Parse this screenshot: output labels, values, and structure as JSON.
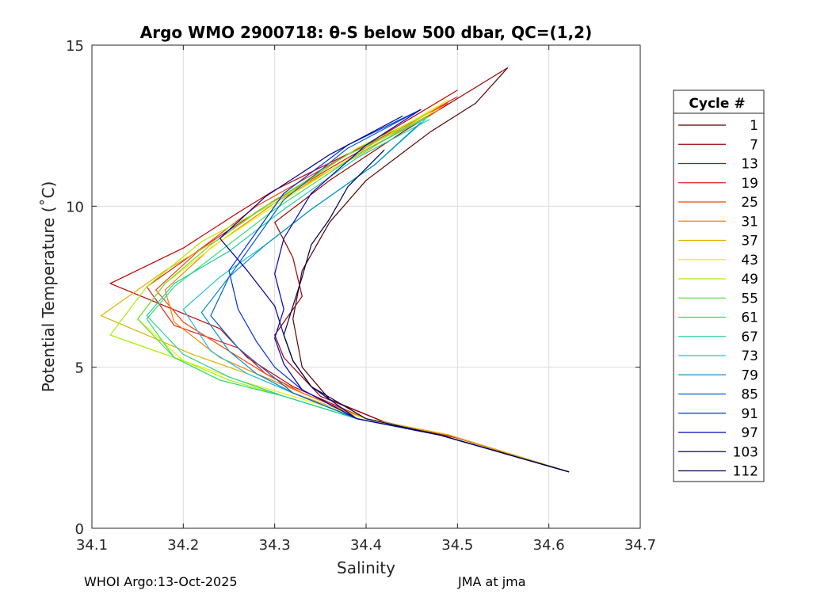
{
  "chart_data": {
    "type": "line",
    "title": "Argo WMO 2900718: θ-S below 500 dbar,  QC=(1,2)",
    "xlabel": "Salinity",
    "ylabel": "Potential Temperature (˚C)",
    "xlim": [
      34.1,
      34.7
    ],
    "ylim": [
      0,
      15
    ],
    "xticks": [
      "34.1",
      "34.2",
      "34.3",
      "34.4",
      "34.5",
      "34.6",
      "34.7"
    ],
    "yticks": [
      "0",
      "5",
      "10",
      "15"
    ],
    "grid": true,
    "legend_title": "Cycle #",
    "legend_position": "right-outside",
    "series": [
      {
        "name": "1",
        "color": "#5a0000",
        "salinity": [
          34.622,
          34.5,
          34.42,
          34.36,
          34.33,
          34.32,
          34.33,
          34.36,
          34.4,
          34.47,
          34.52,
          34.555
        ],
        "theta": [
          1.75,
          2.8,
          3.3,
          4.0,
          5.0,
          6.5,
          8.0,
          9.5,
          10.8,
          12.3,
          13.2,
          14.3
        ]
      },
      {
        "name": "7",
        "color": "#a00000",
        "salinity": [
          34.622,
          34.5,
          34.42,
          34.35,
          34.31,
          34.3,
          34.33,
          34.32,
          34.3,
          34.36,
          34.44,
          34.555
        ],
        "theta": [
          1.75,
          2.8,
          3.3,
          4.1,
          5.3,
          6.0,
          7.2,
          8.4,
          9.5,
          10.8,
          12.3,
          14.3
        ]
      },
      {
        "name": "13",
        "color": "#c40000",
        "salinity": [
          34.622,
          34.5,
          34.4,
          34.32,
          34.27,
          34.24,
          34.12,
          34.2,
          34.26,
          34.3,
          34.4,
          34.5
        ],
        "theta": [
          1.75,
          2.8,
          3.4,
          4.4,
          5.3,
          6.2,
          7.6,
          8.7,
          9.8,
          10.5,
          11.9,
          13.6
        ]
      },
      {
        "name": "19",
        "color": "#e02020",
        "salinity": [
          34.622,
          34.49,
          34.4,
          34.33,
          34.29,
          34.26,
          34.19,
          34.16,
          34.22,
          34.29,
          34.38,
          34.5
        ],
        "theta": [
          1.75,
          2.9,
          3.4,
          4.2,
          4.8,
          5.6,
          6.3,
          7.5,
          8.7,
          10.0,
          11.5,
          13.4
        ]
      },
      {
        "name": "25",
        "color": "#ff4000",
        "salinity": [
          34.622,
          34.49,
          34.4,
          34.33,
          34.29,
          34.25,
          34.2,
          34.17,
          34.22,
          34.28,
          34.38,
          34.49
        ],
        "theta": [
          1.75,
          2.9,
          3.4,
          4.2,
          4.8,
          5.5,
          6.4,
          7.4,
          8.7,
          10.0,
          11.6,
          13.2
        ]
      },
      {
        "name": "31",
        "color": "#ff8000",
        "salinity": [
          34.622,
          34.49,
          34.4,
          34.33,
          34.28,
          34.24,
          34.19,
          34.18,
          34.23,
          34.3,
          34.39,
          34.48
        ],
        "theta": [
          1.75,
          2.9,
          3.4,
          4.2,
          4.8,
          5.3,
          6.4,
          7.4,
          8.7,
          10.1,
          11.6,
          13.0
        ]
      },
      {
        "name": "37",
        "color": "#e0b000",
        "salinity": [
          34.622,
          34.49,
          34.4,
          34.32,
          34.27,
          34.21,
          34.11,
          34.18,
          34.24,
          34.3,
          34.4,
          34.48
        ],
        "theta": [
          1.75,
          2.9,
          3.4,
          4.2,
          4.8,
          5.4,
          6.6,
          8.0,
          9.0,
          10.2,
          11.7,
          13.1
        ]
      },
      {
        "name": "43",
        "color": "#f0f000",
        "salinity": [
          34.622,
          34.48,
          34.4,
          34.32,
          34.26,
          34.2,
          34.15,
          34.18,
          34.24,
          34.31,
          34.4,
          34.49
        ],
        "theta": [
          1.75,
          2.9,
          3.4,
          4.1,
          4.6,
          5.2,
          6.5,
          7.6,
          8.9,
          10.2,
          11.8,
          13.3
        ]
      },
      {
        "name": "49",
        "color": "#a8f000",
        "salinity": [
          34.622,
          34.48,
          34.39,
          34.31,
          34.25,
          34.2,
          34.12,
          34.16,
          34.22,
          34.3,
          34.39,
          34.47
        ],
        "theta": [
          1.75,
          2.9,
          3.4,
          4.1,
          4.6,
          5.2,
          6.0,
          7.5,
          8.9,
          10.1,
          11.8,
          12.9
        ]
      },
      {
        "name": "55",
        "color": "#60e040",
        "salinity": [
          34.622,
          34.48,
          34.39,
          34.31,
          34.24,
          34.19,
          34.15,
          34.18,
          34.23,
          34.29,
          34.38,
          34.47
        ],
        "theta": [
          1.75,
          2.9,
          3.4,
          4.1,
          4.6,
          5.3,
          6.5,
          7.6,
          8.8,
          10.0,
          11.6,
          12.8
        ]
      },
      {
        "name": "61",
        "color": "#30e070",
        "salinity": [
          34.622,
          34.48,
          34.39,
          34.31,
          34.24,
          34.19,
          34.16,
          34.19,
          34.24,
          34.3,
          34.39,
          34.47
        ],
        "theta": [
          1.75,
          2.9,
          3.4,
          4.1,
          4.6,
          5.3,
          6.5,
          7.5,
          8.6,
          9.9,
          11.6,
          12.8
        ]
      },
      {
        "name": "67",
        "color": "#20d0a0",
        "salinity": [
          34.622,
          34.48,
          34.39,
          34.31,
          34.25,
          34.2,
          34.16,
          34.19,
          34.25,
          34.31,
          34.39,
          34.47
        ],
        "theta": [
          1.75,
          2.9,
          3.4,
          4.1,
          4.7,
          5.4,
          6.6,
          7.6,
          8.6,
          9.9,
          11.5,
          12.7
        ]
      },
      {
        "name": "73",
        "color": "#20c0e0",
        "salinity": [
          34.622,
          34.48,
          34.39,
          34.32,
          34.27,
          34.23,
          34.2,
          34.24,
          34.29,
          34.34,
          34.41,
          34.465
        ],
        "theta": [
          1.75,
          2.9,
          3.4,
          4.2,
          4.8,
          5.5,
          6.8,
          7.8,
          8.8,
          9.9,
          11.3,
          12.7
        ]
      },
      {
        "name": "79",
        "color": "#0090d0",
        "salinity": [
          34.622,
          34.48,
          34.39,
          34.32,
          34.28,
          34.25,
          34.22,
          34.25,
          34.29,
          34.34,
          34.41,
          34.46
        ],
        "theta": [
          1.75,
          2.9,
          3.4,
          4.2,
          4.8,
          5.5,
          6.7,
          7.8,
          8.8,
          9.9,
          11.3,
          12.6
        ]
      },
      {
        "name": "85",
        "color": "#0060d0",
        "salinity": [
          34.622,
          34.48,
          34.39,
          34.32,
          34.29,
          34.26,
          34.23,
          34.25,
          34.28,
          34.31,
          34.38,
          34.46
        ],
        "theta": [
          1.75,
          2.9,
          3.4,
          4.2,
          4.9,
          5.6,
          6.6,
          7.8,
          9.0,
          10.2,
          11.8,
          13.0
        ]
      },
      {
        "name": "91",
        "color": "#0030e0",
        "salinity": [
          34.622,
          34.48,
          34.39,
          34.33,
          34.3,
          34.28,
          34.26,
          34.25,
          34.28,
          34.31,
          34.38,
          34.46
        ],
        "theta": [
          1.75,
          2.9,
          3.4,
          4.3,
          5.0,
          5.8,
          6.8,
          8.0,
          9.2,
          10.4,
          11.9,
          13.0
        ]
      },
      {
        "name": "97",
        "color": "#0000c0",
        "salinity": [
          34.622,
          34.48,
          34.39,
          34.33,
          34.31,
          34.3,
          34.31,
          34.3,
          34.31,
          34.34,
          34.4,
          34.46
        ],
        "theta": [
          1.75,
          2.9,
          3.4,
          4.3,
          5.1,
          5.9,
          6.8,
          7.9,
          9.0,
          10.4,
          11.9,
          13.0
        ]
      },
      {
        "name": "103",
        "color": "#000090",
        "salinity": [
          34.622,
          34.48,
          34.39,
          34.34,
          34.32,
          34.31,
          34.3,
          34.27,
          34.24,
          34.29,
          34.36,
          34.44
        ],
        "theta": [
          1.75,
          2.9,
          3.4,
          4.4,
          5.2,
          6.0,
          6.9,
          8.0,
          9.0,
          10.3,
          11.6,
          12.8
        ]
      },
      {
        "name": "112",
        "color": "#000048",
        "salinity": [
          34.622,
          34.48,
          34.4,
          34.34,
          34.32,
          34.31,
          34.32,
          34.33,
          34.34,
          34.36,
          34.38,
          34.42
        ],
        "theta": [
          1.75,
          2.9,
          3.4,
          4.4,
          5.2,
          6.0,
          6.9,
          7.8,
          8.8,
          9.6,
          10.6,
          11.75
        ]
      }
    ]
  },
  "footer": {
    "left": "WHOI Argo:13-Oct-2025",
    "right": "JMA at jma"
  }
}
